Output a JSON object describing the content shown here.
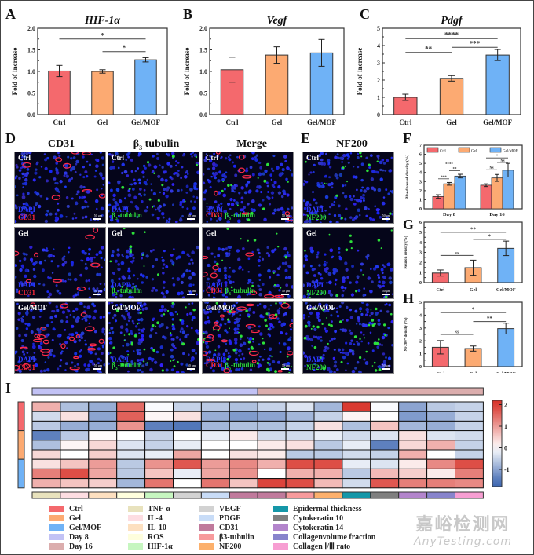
{
  "panels": {
    "A": "A",
    "B": "B",
    "C": "C",
    "D": "D",
    "E": "E",
    "F": "F",
    "G": "G",
    "H": "H",
    "I": "I"
  },
  "colors": {
    "ctrl": "#f4696d",
    "gel": "#fcaa72",
    "gelmof": "#6fb2f6"
  },
  "chart_data": [
    {
      "id": "A",
      "type": "bar",
      "title": "HIF-1α",
      "xlabel": "",
      "ylabel": "Fold of increase",
      "categories": [
        "Ctrl",
        "Gel",
        "Gel/MOF"
      ],
      "values": [
        1.01,
        1.0,
        1.27
      ],
      "errors": [
        0.13,
        0.04,
        0.05
      ],
      "ylim": [
        0,
        2.0
      ],
      "yticks": [
        "0.0",
        "0.5",
        "1.0",
        "1.5",
        "2.0"
      ],
      "significance": [
        {
          "from": "Ctrl",
          "to": "Gel/MOF",
          "label": "*"
        },
        {
          "from": "Gel",
          "to": "Gel/MOF",
          "label": "*"
        }
      ]
    },
    {
      "id": "B",
      "type": "bar",
      "title": "Vegf",
      "xlabel": "",
      "ylabel": "Fold of increase",
      "categories": [
        "Ctrl",
        "Gel",
        "Gel/MOF"
      ],
      "values": [
        1.04,
        1.38,
        1.43
      ],
      "errors": [
        0.29,
        0.19,
        0.31
      ],
      "ylim": [
        0,
        2.0
      ],
      "yticks": [
        "0.0",
        "0.5",
        "1.0",
        "1.5",
        "2.0"
      ],
      "significance": []
    },
    {
      "id": "C",
      "type": "bar",
      "title": "Pdgf",
      "xlabel": "",
      "ylabel": "Fold of increase",
      "categories": [
        "Ctrl",
        "Gel",
        "Gel/MOF"
      ],
      "values": [
        1.0,
        2.1,
        3.45
      ],
      "errors": [
        0.18,
        0.16,
        0.32
      ],
      "ylim": [
        0,
        5
      ],
      "yticks": [
        "0",
        "1",
        "2",
        "3",
        "4",
        "5"
      ],
      "significance": [
        {
          "from": "Ctrl",
          "to": "Gel/MOF",
          "label": "****"
        },
        {
          "from": "Ctrl",
          "to": "Gel",
          "label": "**"
        },
        {
          "from": "Gel",
          "to": "Gel/MOF",
          "label": "***"
        }
      ]
    },
    {
      "id": "F",
      "type": "bar",
      "title": "",
      "xlabel": "",
      "ylabel": "Blood vessel density (%)",
      "categories": [
        "Day 8",
        "Day 16"
      ],
      "series": [
        {
          "name": "Ctrl",
          "values": [
            1.35,
            2.6
          ],
          "errors": [
            0.2,
            0.15
          ]
        },
        {
          "name": "Gel",
          "values": [
            2.75,
            3.4
          ],
          "errors": [
            0.15,
            0.38
          ]
        },
        {
          "name": "Gel/MOF",
          "values": [
            3.6,
            4.25
          ],
          "errors": [
            0.2,
            0.75
          ]
        }
      ],
      "ylim": [
        0,
        7
      ],
      "yticks": [
        "0",
        "1",
        "2",
        "3",
        "4",
        "5",
        "6",
        "7"
      ],
      "legend": "top",
      "significance": [
        {
          "group": "Day 8",
          "label": "****"
        },
        {
          "group": "Day 8",
          "label": "***"
        },
        {
          "group": "Day 8",
          "label": "**"
        },
        {
          "group": "Day 16",
          "label": "*"
        },
        {
          "group": "Day 16",
          "label": "NS"
        },
        {
          "group": "Day 16",
          "label": "NS"
        }
      ]
    },
    {
      "id": "G",
      "type": "bar",
      "title": "",
      "xlabel": "",
      "ylabel": "Neuron density (%)",
      "categories": [
        "Ctrl",
        "Gel",
        "Gel/MOF"
      ],
      "values": [
        0.95,
        1.48,
        3.4
      ],
      "errors": [
        0.3,
        0.75,
        0.72
      ],
      "ylim": [
        0,
        6
      ],
      "yticks": [
        "0",
        "1",
        "2",
        "3",
        "4",
        "5",
        "6"
      ],
      "significance": [
        {
          "from": "Ctrl",
          "to": "Gel/MOF",
          "label": "**"
        },
        {
          "from": "Gel",
          "to": "Gel/MOF",
          "label": "*"
        },
        {
          "from": "Ctrl",
          "to": "Gel",
          "label": "NS"
        }
      ]
    },
    {
      "id": "H",
      "type": "bar",
      "title": "",
      "xlabel": "",
      "ylabel": "NF200⁺ density (%)",
      "categories": [
        "Ctrl",
        "Gel",
        "Gel/MOF"
      ],
      "values": [
        1.5,
        1.4,
        2.95
      ],
      "errors": [
        0.52,
        0.2,
        0.42
      ],
      "ylim": [
        0,
        5
      ],
      "yticks": [
        "0",
        "1",
        "2",
        "3",
        "4",
        "5"
      ],
      "significance": [
        {
          "from": "Ctrl",
          "to": "Gel/MOF",
          "label": "*"
        },
        {
          "from": "Gel",
          "to": "Gel/MOF",
          "label": "**"
        },
        {
          "from": "Ctrl",
          "to": "Gel",
          "label": "NS"
        }
      ]
    },
    {
      "id": "I",
      "type": "heatmap",
      "title": "",
      "rows": [
        "Ctrl",
        "Ctrl",
        "Ctrl",
        "Gel",
        "Gel",
        "Gel",
        "Gel/MOF",
        "Gel/MOF",
        "Gel/MOF"
      ],
      "column_groups": [
        {
          "name": "Day 8",
          "span": 8
        },
        {
          "name": "Day 16",
          "span": 8
        }
      ],
      "columns": [
        "TNF-α",
        "IL-4",
        "IL-10",
        "ROS",
        "HIF-1α",
        "VEGF",
        "PDGF",
        "CD31",
        "CD31",
        "β3-tubulin",
        "NF200",
        "Epidermal thickness",
        "Cytokeratin 10",
        "Cytokeratin 14",
        "Collagenvolume fraction",
        "Collagen Ⅰ/Ⅲ rato"
      ],
      "values": [
        [
          0.8,
          -0.7,
          -0.9,
          1.5,
          -0.05,
          -0.5,
          -0.6,
          -0.7,
          -0.5,
          -0.3,
          -0.8,
          2.0,
          -0.05,
          -1.0,
          -0.6,
          -0.5
        ],
        [
          -0.4,
          0.3,
          -1.0,
          1.6,
          0.1,
          0.3,
          -0.9,
          -1.1,
          -1.0,
          -0.8,
          -0.5,
          0.1,
          0.0,
          -1.1,
          -0.9,
          -0.5
        ],
        [
          -0.6,
          -0.9,
          -0.9,
          1.1,
          -1.4,
          -1.5,
          -0.8,
          -0.7,
          -0.7,
          -0.5,
          0.3,
          -0.7,
          0.6,
          -0.8,
          -0.9,
          -0.5
        ],
        [
          -1.4,
          -0.6,
          0.05,
          0.0,
          -0.5,
          0.0,
          -0.2,
          0.2,
          -0.4,
          -0.4,
          -0.2,
          -0.4,
          -0.3,
          0.3,
          -0.3,
          -0.4
        ],
        [
          -0.7,
          0.1,
          0.4,
          -0.3,
          -0.5,
          -0.2,
          0.0,
          0.0,
          0.2,
          0.3,
          -0.6,
          -0.2,
          -1.4,
          0.4,
          0.8,
          -0.5
        ],
        [
          0.4,
          0.0,
          0.5,
          -0.3,
          -0.2,
          0.9,
          0.0,
          0.3,
          0.2,
          -0.6,
          -0.6,
          -0.4,
          -0.5,
          0.8,
          0.0,
          -0.5
        ],
        [
          0.3,
          0.6,
          1.0,
          -0.6,
          1.1,
          1.7,
          1.0,
          1.2,
          0.8,
          1.8,
          1.8,
          -0.2,
          -0.3,
          0.2,
          1.2,
          1.8
        ],
        [
          1.3,
          1.8,
          0.9,
          -0.6,
          0.6,
          -0.2,
          0.9,
          1.1,
          0.0,
          0.8,
          0.8,
          -0.6,
          0.7,
          0.5,
          0.2,
          1.3
        ],
        [
          0.8,
          0.6,
          0.5,
          -0.8,
          1.4,
          0.0,
          1.4,
          0.6,
          1.9,
          1.8,
          0.7,
          -0.4,
          1.7,
          1.3,
          1.3,
          1.2
        ]
      ],
      "colorbar": {
        "range": [
          -1.8,
          2.2
        ],
        "ticks": [
          "2",
          "1",
          "0",
          "-1"
        ]
      },
      "column_colors": [
        "#e8e2bd",
        "#fddde2",
        "#fde0c0",
        "#fefedd",
        "#c6f6c0",
        "#d2d2d2",
        "#c8dcf7",
        "#c07a9c",
        "#c07a9c",
        "#f79a9c",
        "#fcb06c",
        "#1597a8",
        "#7f7f7f",
        "#b385cc",
        "#8884cc",
        "#f79ed2"
      ],
      "row_colors": [
        "#f4696d",
        "#fcaa72",
        "#6fb2f6"
      ],
      "group_colors": [
        "#c2c2f5",
        "#dbadad"
      ]
    }
  ],
  "microscopy": {
    "column_titles": {
      "cd31": "CD31",
      "b3": "β",
      "b3_sub": "3",
      "b3_rest": " tubulin",
      "merge": "Merge",
      "nf200": "NF200"
    },
    "rows": [
      "Ctrl",
      "Gel",
      "Gel/MOF"
    ],
    "labels": {
      "dapi": "DAPI",
      "cd31": "CD31",
      "b3": "β",
      "b3_sub": "3",
      "b3_rest": "-tubulin",
      "nf200": "NF200",
      "scale": "50 μm"
    }
  },
  "legend": {
    "col1": [
      {
        "label": "Ctrl",
        "color": "#f4696d"
      },
      {
        "label": "Gel",
        "color": "#fcaa72"
      },
      {
        "label": "Gel/MOF",
        "color": "#6fb2f6"
      },
      {
        "label": "Day 8",
        "color": "#c2c2f5"
      },
      {
        "label": "Day 16",
        "color": "#dbadad"
      }
    ],
    "col2": [
      {
        "label": "TNF-α",
        "color": "#e8e2bd"
      },
      {
        "label": "IL-4",
        "color": "#fddde2"
      },
      {
        "label": "IL-10",
        "color": "#fde0c0"
      },
      {
        "label": "ROS",
        "color": "#fefedd"
      },
      {
        "label": "HIF-1α",
        "color": "#c6f6c0"
      }
    ],
    "col3": [
      {
        "label": "VEGF",
        "color": "#d2d2d2"
      },
      {
        "label": "PDGF",
        "color": "#c8dcf7"
      },
      {
        "label": "CD31",
        "color": "#c07a9c"
      },
      {
        "label": "β3-tubulin",
        "color": "#f79a9c"
      },
      {
        "label": "NF200",
        "color": "#fcb06c"
      }
    ],
    "col4": [
      {
        "label": "Epidermal thickness",
        "color": "#1597a8"
      },
      {
        "label": "Cytokeratin 10",
        "color": "#7f7f7f"
      },
      {
        "label": "Cytokeratin 14",
        "color": "#b385cc"
      },
      {
        "label": "Collagenvolume fraction",
        "color": "#8884cc"
      },
      {
        "label": "Collagen Ⅰ/Ⅲ rato",
        "color": "#f79ed2"
      }
    ]
  },
  "watermark": {
    "cn": "嘉峪检测网",
    "en": "AnyTesting.com"
  }
}
